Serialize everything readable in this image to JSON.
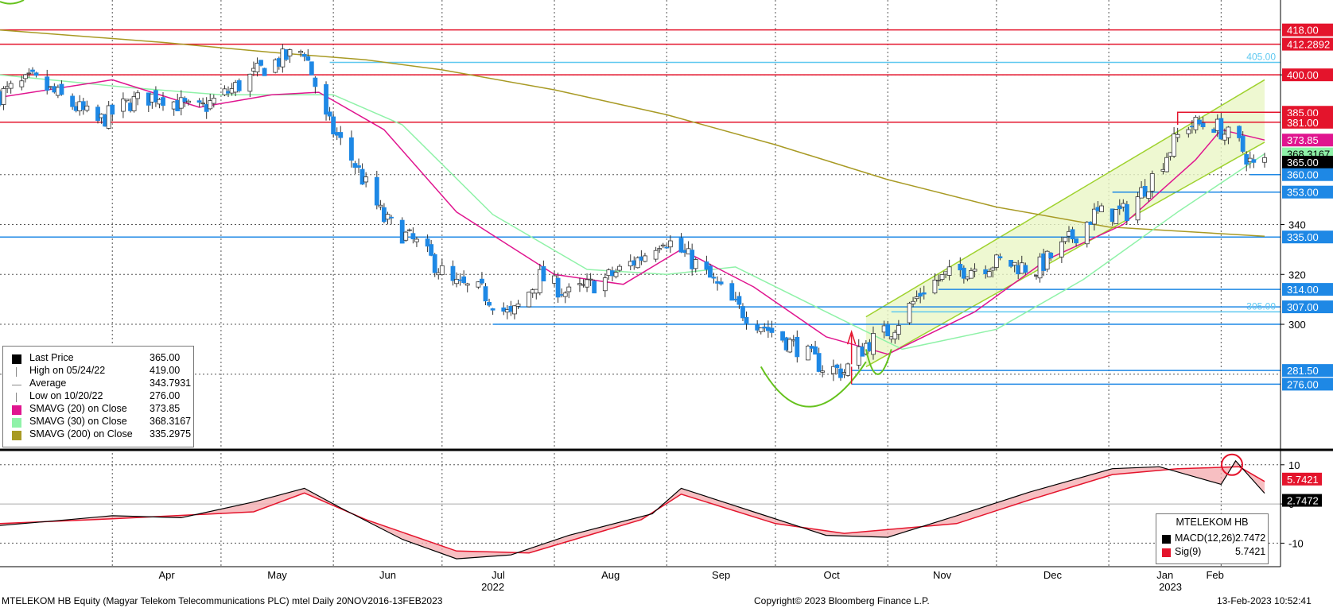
{
  "chart_data": [
    {
      "type": "candlestick",
      "x_range": [
        "2022-03-01",
        "2023-02-13"
      ],
      "ylim": [
        250,
        430
      ],
      "y_ticks": [
        300,
        320,
        340,
        400
      ],
      "x_month_labels": [
        "Apr",
        "May",
        "Jun",
        "Jul",
        "Aug",
        "Sep",
        "Oct",
        "Nov",
        "Dec",
        "Jan",
        "Feb"
      ],
      "x_year_labels": [
        {
          "label": "2022",
          "date": "2022-07-15"
        },
        {
          "label": "2023",
          "date": "2023-01-18"
        }
      ],
      "grid": true,
      "legend_position": "bottom-left",
      "colors": {
        "up": "#ffffff",
        "down": "#1e88e5",
        "sma20": "#e0158f",
        "sma30": "#8ff2a8",
        "sma200": "#a89a24",
        "hline_red": "#e4142c",
        "hline_blue": "#1e88e5",
        "channel": "#9fd22e"
      },
      "key_points": [
        {
          "date": "2022-03-01",
          "close": 392
        },
        {
          "date": "2022-03-10",
          "close": 398
        },
        {
          "date": "2022-03-20",
          "close": 389
        },
        {
          "date": "2022-03-28",
          "close": 381
        },
        {
          "date": "2022-04-06",
          "close": 389
        },
        {
          "date": "2022-04-14",
          "close": 392
        },
        {
          "date": "2022-04-24",
          "close": 385
        },
        {
          "date": "2022-05-04",
          "close": 394
        },
        {
          "date": "2022-05-14",
          "close": 404
        },
        {
          "date": "2022-05-24",
          "close": 410
        },
        {
          "date": "2022-05-30",
          "close": 382
        },
        {
          "date": "2022-06-07",
          "close": 364
        },
        {
          "date": "2022-06-15",
          "close": 342
        },
        {
          "date": "2022-06-25",
          "close": 331
        },
        {
          "date": "2022-07-04",
          "close": 316
        },
        {
          "date": "2022-07-12",
          "close": 313
        },
        {
          "date": "2022-07-20",
          "close": 303
        },
        {
          "date": "2022-07-28",
          "close": 319
        },
        {
          "date": "2022-08-05",
          "close": 312
        },
        {
          "date": "2022-08-15",
          "close": 318
        },
        {
          "date": "2022-08-25",
          "close": 327
        },
        {
          "date": "2022-08-31",
          "close": 335
        },
        {
          "date": "2022-09-10",
          "close": 323
        },
        {
          "date": "2022-09-20",
          "close": 307
        },
        {
          "date": "2022-09-30",
          "close": 297
        },
        {
          "date": "2022-10-08",
          "close": 290
        },
        {
          "date": "2022-10-14",
          "close": 283
        },
        {
          "date": "2022-10-20",
          "close": 281
        },
        {
          "date": "2022-10-26",
          "close": 292
        },
        {
          "date": "2022-11-02",
          "close": 298
        },
        {
          "date": "2022-11-12",
          "close": 316
        },
        {
          "date": "2022-11-22",
          "close": 322
        },
        {
          "date": "2022-12-02",
          "close": 325
        },
        {
          "date": "2022-12-12",
          "close": 322
        },
        {
          "date": "2022-12-20",
          "close": 332
        },
        {
          "date": "2022-12-28",
          "close": 344
        },
        {
          "date": "2023-01-06",
          "close": 345
        },
        {
          "date": "2023-01-14",
          "close": 361
        },
        {
          "date": "2023-01-22",
          "close": 380
        },
        {
          "date": "2023-01-30",
          "close": 380
        },
        {
          "date": "2023-02-06",
          "close": 372
        },
        {
          "date": "2023-02-10",
          "close": 363
        },
        {
          "date": "2023-02-13",
          "close": 365
        }
      ],
      "sma20": [
        {
          "date": "2022-03-01",
          "v": 391
        },
        {
          "date": "2022-04-01",
          "v": 398
        },
        {
          "date": "2022-04-25",
          "v": 387
        },
        {
          "date": "2022-05-15",
          "v": 392
        },
        {
          "date": "2022-05-28",
          "v": 393
        },
        {
          "date": "2022-06-15",
          "v": 378
        },
        {
          "date": "2022-07-05",
          "v": 345
        },
        {
          "date": "2022-08-01",
          "v": 320
        },
        {
          "date": "2022-08-20",
          "v": 316
        },
        {
          "date": "2022-09-05",
          "v": 330
        },
        {
          "date": "2022-09-25",
          "v": 315
        },
        {
          "date": "2022-10-15",
          "v": 295
        },
        {
          "date": "2022-11-01",
          "v": 288
        },
        {
          "date": "2022-11-25",
          "v": 305
        },
        {
          "date": "2022-12-15",
          "v": 326
        },
        {
          "date": "2023-01-05",
          "v": 340
        },
        {
          "date": "2023-01-25",
          "v": 366
        },
        {
          "date": "2023-02-01",
          "v": 378
        },
        {
          "date": "2023-02-13",
          "v": 373.85
        }
      ],
      "sma30": [
        {
          "date": "2022-03-01",
          "v": 400
        },
        {
          "date": "2022-04-05",
          "v": 395
        },
        {
          "date": "2022-05-01",
          "v": 392
        },
        {
          "date": "2022-06-01",
          "v": 392
        },
        {
          "date": "2022-06-20",
          "v": 380
        },
        {
          "date": "2022-07-15",
          "v": 344
        },
        {
          "date": "2022-08-10",
          "v": 322
        },
        {
          "date": "2022-09-01",
          "v": 320
        },
        {
          "date": "2022-09-20",
          "v": 323
        },
        {
          "date": "2022-10-15",
          "v": 305
        },
        {
          "date": "2022-11-05",
          "v": 290
        },
        {
          "date": "2022-12-01",
          "v": 298
        },
        {
          "date": "2022-12-25",
          "v": 318
        },
        {
          "date": "2023-01-20",
          "v": 345
        },
        {
          "date": "2023-02-13",
          "v": 368.3167
        }
      ],
      "sma200": [
        {
          "date": "2022-03-01",
          "v": 418
        },
        {
          "date": "2022-04-15",
          "v": 413
        },
        {
          "date": "2022-05-15",
          "v": 409
        },
        {
          "date": "2022-06-10",
          "v": 406
        },
        {
          "date": "2022-07-01",
          "v": 402
        },
        {
          "date": "2022-08-01",
          "v": 394
        },
        {
          "date": "2022-09-01",
          "v": 384
        },
        {
          "date": "2022-10-01",
          "v": 372
        },
        {
          "date": "2022-11-01",
          "v": 358
        },
        {
          "date": "2022-12-01",
          "v": 347
        },
        {
          "date": "2023-01-01",
          "v": 339
        },
        {
          "date": "2023-02-13",
          "v": 335.2975
        }
      ],
      "horizontal_lines": [
        {
          "value": 418.0,
          "label": "418.00",
          "color": "red",
          "from": "2022-03-01"
        },
        {
          "value": 412.2892,
          "label": "412.2892",
          "color": "red",
          "from": "2022-03-01"
        },
        {
          "value": 405.0,
          "label": "405.00",
          "color": "cyan",
          "from": "2022-05-31"
        },
        {
          "value": 400.0,
          "label": "400.00",
          "color": "red",
          "from": "2022-03-01"
        },
        {
          "value": 385.0,
          "label": "385.00",
          "color": "red",
          "from": "2023-01-20"
        },
        {
          "value": 381.0,
          "label": "381.00",
          "color": "red",
          "from": "2022-03-01"
        },
        {
          "value": 360.0,
          "label": "360.00",
          "color": "blue",
          "from": "2023-02-09"
        },
        {
          "value": 353.0,
          "label": "353.00",
          "color": "blue",
          "from": "2023-01-02"
        },
        {
          "value": 335.0,
          "label": "335.00",
          "color": "blue",
          "from": "2022-03-01"
        },
        {
          "value": 314.0,
          "label": "314.00",
          "color": "blue",
          "from": "2022-11-15"
        },
        {
          "value": 307.0,
          "label": "307.00",
          "color": "blue",
          "from": "2022-07-22"
        },
        {
          "value": 305.0,
          "label": "305.00",
          "color": "cyan",
          "from": "2022-11-02"
        },
        {
          "value": 300.0,
          "label": "",
          "color": "blue",
          "from": "2022-07-15"
        },
        {
          "value": 281.5,
          "label": "281.50",
          "color": "blue",
          "from": "2022-10-22"
        },
        {
          "value": 276.0,
          "label": "276.00",
          "color": "blue",
          "from": "2022-10-22"
        }
      ],
      "right_labels": [
        {
          "value": 385.0,
          "text": "385.00",
          "bg": "#e4142c"
        },
        {
          "value": 381.0,
          "text": "381.00",
          "bg": "#e4142c"
        },
        {
          "value": 373.85,
          "text": "373.85",
          "bg": "#e0158f"
        },
        {
          "value": 368.3167,
          "text": "368.3167",
          "bg": "#8ff2a8"
        },
        {
          "value": 365.0,
          "text": "365.00",
          "bg": "#000000"
        },
        {
          "value": 360.0,
          "text": "360.00",
          "bg": "#1e88e5"
        },
        {
          "value": 353.0,
          "text": "353.00",
          "bg": "#1e88e5"
        },
        {
          "value": 335.0,
          "text": "335.00",
          "bg": "#1e88e5"
        },
        {
          "value": 314.0,
          "text": "314.00",
          "bg": "#1e88e5"
        },
        {
          "value": 307.0,
          "text": "307.00",
          "bg": "#1e88e5"
        },
        {
          "value": 281.5,
          "text": "281.50",
          "bg": "#1e88e5"
        },
        {
          "value": 276.0,
          "text": "276.00",
          "bg": "#1e88e5"
        },
        {
          "value": 418.0,
          "text": "418.00",
          "bg": "#e4142c"
        },
        {
          "value": 412.2892,
          "text": "412.2892",
          "bg": "#e4142c"
        },
        {
          "value": 400.0,
          "text": "400.00",
          "bg": "#e4142c"
        }
      ],
      "channel": {
        "lower": [
          [
            "2022-10-26",
            283
          ],
          [
            "2023-02-13",
            373
          ]
        ],
        "upper": [
          [
            "2022-10-26",
            303
          ],
          [
            "2023-02-13",
            398
          ]
        ]
      }
    },
    {
      "type": "line",
      "name": "MACD",
      "ylim": [
        -16,
        13
      ],
      "y_ticks": [
        10,
        0,
        -10
      ],
      "series": [
        {
          "name": "MACD(12,26)",
          "color": "#000000",
          "points": [
            {
              "date": "2022-03-01",
              "v": -5.5
            },
            {
              "date": "2022-03-20",
              "v": -4
            },
            {
              "date": "2022-04-01",
              "v": -3
            },
            {
              "date": "2022-04-20",
              "v": -3.5
            },
            {
              "date": "2022-05-10",
              "v": 0.5
            },
            {
              "date": "2022-05-24",
              "v": 4
            },
            {
              "date": "2022-06-03",
              "v": -1
            },
            {
              "date": "2022-06-20",
              "v": -9
            },
            {
              "date": "2022-07-05",
              "v": -14
            },
            {
              "date": "2022-07-20",
              "v": -13
            },
            {
              "date": "2022-08-05",
              "v": -8
            },
            {
              "date": "2022-08-28",
              "v": -2.5
            },
            {
              "date": "2022-09-05",
              "v": 4
            },
            {
              "date": "2022-09-25",
              "v": -2
            },
            {
              "date": "2022-10-15",
              "v": -8
            },
            {
              "date": "2022-11-01",
              "v": -8.5
            },
            {
              "date": "2022-11-20",
              "v": -3
            },
            {
              "date": "2022-12-10",
              "v": 3
            },
            {
              "date": "2023-01-02",
              "v": 9
            },
            {
              "date": "2023-01-15",
              "v": 9.5
            },
            {
              "date": "2023-02-01",
              "v": 5
            },
            {
              "date": "2023-02-05",
              "v": 11
            },
            {
              "date": "2023-02-13",
              "v": 2.7472
            }
          ]
        },
        {
          "name": "Sig(9)",
          "color": "#e4142c",
          "points": [
            {
              "date": "2022-03-01",
              "v": -5
            },
            {
              "date": "2022-04-01",
              "v": -3.8
            },
            {
              "date": "2022-05-10",
              "v": -2
            },
            {
              "date": "2022-05-24",
              "v": 2.8
            },
            {
              "date": "2022-06-10",
              "v": -4
            },
            {
              "date": "2022-07-05",
              "v": -12
            },
            {
              "date": "2022-07-25",
              "v": -12.5
            },
            {
              "date": "2022-08-25",
              "v": -4
            },
            {
              "date": "2022-09-05",
              "v": 2.5
            },
            {
              "date": "2022-10-01",
              "v": -5
            },
            {
              "date": "2022-10-20",
              "v": -7.5
            },
            {
              "date": "2022-11-20",
              "v": -5
            },
            {
              "date": "2022-12-10",
              "v": 1
            },
            {
              "date": "2023-01-02",
              "v": 7.5
            },
            {
              "date": "2023-01-20",
              "v": 9
            },
            {
              "date": "2023-02-06",
              "v": 9.5
            },
            {
              "date": "2023-02-13",
              "v": 5.7421
            }
          ]
        }
      ]
    }
  ],
  "legend": {
    "title_panel": "",
    "rows": [
      {
        "label": "Last Price",
        "value": "365.00",
        "color": "#000000",
        "symbol": "box"
      },
      {
        "label": "High on 05/24/22",
        "value": "419.00",
        "color": "#888888",
        "symbol": "tick"
      },
      {
        "label": "Average",
        "value": "343.7931",
        "color": "#888888",
        "symbol": "avg"
      },
      {
        "label": "Low on 10/20/22",
        "value": "276.00",
        "color": "#888888",
        "symbol": "tick"
      },
      {
        "label": "SMAVG (20)  on Close",
        "value": "373.85",
        "color": "#e0158f",
        "symbol": "box"
      },
      {
        "label": "SMAVG (30)  on Close",
        "value": "368.3167",
        "color": "#8ff2a8",
        "symbol": "box"
      },
      {
        "label": "SMAVG (200)  on Close",
        "value": "335.2975",
        "color": "#a89a24",
        "symbol": "box"
      }
    ]
  },
  "macd_legend": {
    "title": "MTELEKOM HB",
    "rows": [
      {
        "label": "MACD(12,26)",
        "value": "2.7472",
        "color": "#000000"
      },
      {
        "label": "Sig(9)",
        "value": "5.7421",
        "color": "#e4142c"
      }
    ]
  },
  "footer": {
    "left": "MTELEKOM HB Equity (Magyar Telekom Telecommunications PLC) mtel  Daily 20NOV2016-13FEB2023",
    "center": "Copyright© 2023 Bloomberg Finance L.P.",
    "right": "13-Feb-2023 10:52:41"
  }
}
